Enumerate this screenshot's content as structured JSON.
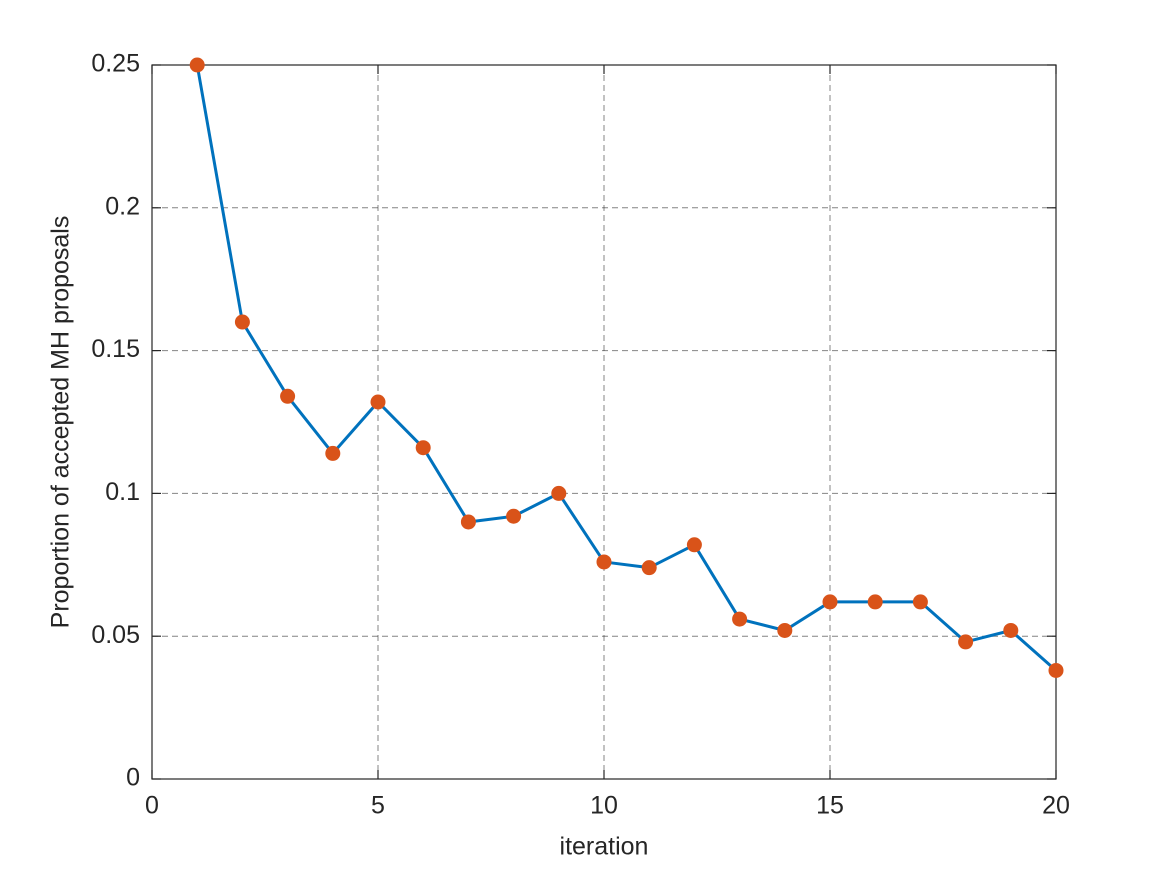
{
  "chart_data": {
    "type": "line",
    "xlabel": "iteration",
    "ylabel": "Proportion of accepted MH proposals",
    "x": [
      1,
      2,
      3,
      4,
      5,
      6,
      7,
      8,
      9,
      10,
      11,
      12,
      13,
      14,
      15,
      16,
      17,
      18,
      19,
      20
    ],
    "values": [
      0.25,
      0.16,
      0.134,
      0.114,
      0.132,
      0.116,
      0.09,
      0.092,
      0.1,
      0.076,
      0.074,
      0.082,
      0.056,
      0.052,
      0.062,
      0.062,
      0.062,
      0.048,
      0.052,
      0.038
    ],
    "color": "#0072bd",
    "marker_color": "#d95319",
    "xlim": [
      0,
      20
    ],
    "xticks": [
      0,
      5,
      10,
      15,
      20
    ],
    "ylim": [
      0,
      0.25
    ],
    "yticks": [
      0,
      0.05,
      0.1,
      0.15,
      0.2,
      0.25
    ],
    "grid": true
  }
}
